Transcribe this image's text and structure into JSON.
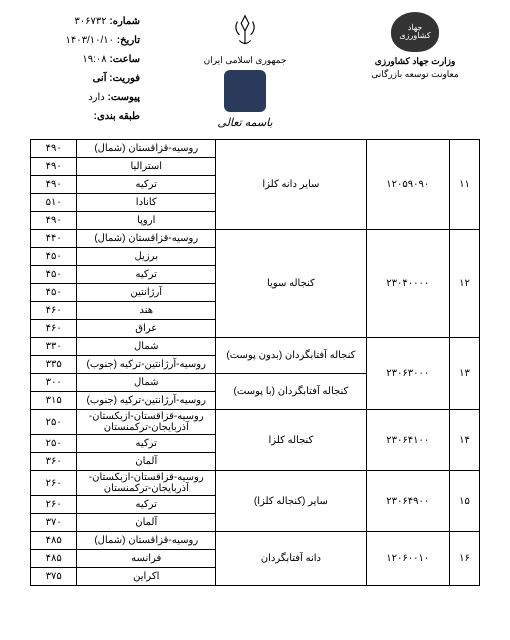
{
  "header": {
    "ministry": "وزارت جهاد کشاورزی",
    "deputy": "معاونت توسعه بازرگانی",
    "logo_top": "جهاد",
    "logo_bottom": "کشاورزی",
    "country": "جمهوری اسلامی ایران",
    "bismillah": "باسمه تعالی"
  },
  "meta": {
    "number_label": "شماره:",
    "number": "۳۰۶۷۳۲",
    "date_label": "تاریخ:",
    "date": "۱۴۰۳/۱۰/۱۰",
    "time_label": "ساعت:",
    "time": "۱۹:۰۸",
    "priority_label": "فوریت:",
    "priority": "آنی",
    "attach_label": "پیوست:",
    "attach": "دارد",
    "class_label": "طبقه بندی:"
  },
  "rows": [
    {
      "idx": "۱۱",
      "code": "۱۲۰۵۹۰۹۰",
      "product": "سایر دانه کلزا",
      "sub": [
        {
          "origin": "روسیه-قزاقستان (شمال)",
          "price": "۴۹۰"
        },
        {
          "origin": "استرالیا",
          "price": "۴۹۰"
        },
        {
          "origin": "ترکیه",
          "price": "۴۹۰"
        },
        {
          "origin": "کانادا",
          "price": "۵۱۰"
        },
        {
          "origin": "اروپا",
          "price": "۴۹۰"
        }
      ]
    },
    {
      "idx": "۱۲",
      "code": "۲۳۰۴۰۰۰۰",
      "product": "کنجاله سویا",
      "sub": [
        {
          "origin": "روسیه-قزاقستان (شمال)",
          "price": "۴۴۰"
        },
        {
          "origin": "برزیل",
          "price": "۴۵۰"
        },
        {
          "origin": "ترکیه",
          "price": "۴۵۰"
        },
        {
          "origin": "آرژانتین",
          "price": "۴۵۰"
        },
        {
          "origin": "هند",
          "price": "۴۶۰"
        },
        {
          "origin": "عراق",
          "price": "۴۶۰"
        }
      ]
    },
    {
      "idx": "۱۳",
      "code": "۲۳۰۶۳۰۰۰",
      "products": [
        {
          "name": "کنجاله آفتابگردان (بدون پوست)",
          "sub": [
            {
              "origin": "شمال",
              "price": "۳۳۰"
            },
            {
              "origin": "روسیه-آرژانتین-ترکیه (جنوب)",
              "price": "۳۳۵"
            }
          ]
        },
        {
          "name": "کنجاله آفتابگردان (با پوست)",
          "sub": [
            {
              "origin": "شمال",
              "price": "۳۰۰"
            },
            {
              "origin": "روسیه-آرژانتین-ترکیه (جنوب)",
              "price": "۳۱۵"
            }
          ]
        }
      ]
    },
    {
      "idx": "۱۴",
      "code": "۲۳۰۶۴۱۰۰",
      "product": "کنجاله کلزا",
      "sub": [
        {
          "origin": "روسیه-قزاقستان-ازبکستان-آذربایجان-ترکمنستان",
          "price": "۲۵۰"
        },
        {
          "origin": "ترکیه",
          "price": "۲۵۰"
        },
        {
          "origin": "آلمان",
          "price": "۳۶۰"
        }
      ]
    },
    {
      "idx": "۱۵",
      "code": "۲۳۰۶۴۹۰۰",
      "product": "سایر (کنجاله کلزا)",
      "sub": [
        {
          "origin": "روسیه-قزاقستان-ازبکستان-آذربایجان-ترکمنستان",
          "price": "۲۶۰"
        },
        {
          "origin": "ترکیه",
          "price": "۲۶۰"
        },
        {
          "origin": "آلمان",
          "price": "۳۷۰"
        }
      ]
    },
    {
      "idx": "۱۶",
      "code": "۱۲۰۶۰۰۱۰",
      "product": "دانه آفتابگردان",
      "sub": [
        {
          "origin": "روسیه-قزاقستان (شمال)",
          "price": "۴۸۵"
        },
        {
          "origin": "فرانسه",
          "price": "۴۸۵"
        },
        {
          "origin": "اکراین",
          "price": "۳۷۵"
        }
      ]
    }
  ]
}
